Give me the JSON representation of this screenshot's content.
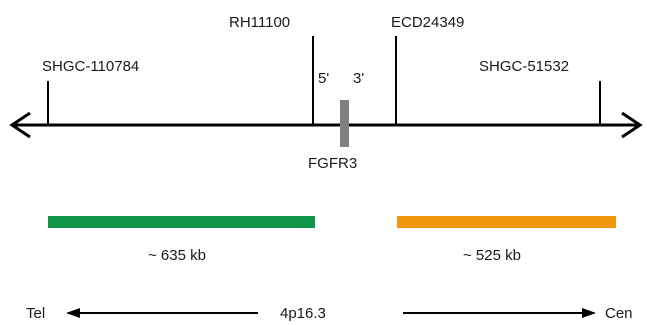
{
  "markers": {
    "m1": "SHGC-110784",
    "m2": "RH11100",
    "m3": "ECD24349",
    "m4": "SHGC-51532"
  },
  "gene": {
    "name": "FGFR3",
    "five_prime": "5'",
    "three_prime": "3'",
    "color": "#808080"
  },
  "probes": {
    "left": {
      "size_label": "~ 635 kb",
      "color": "#0f9447"
    },
    "right": {
      "size_label": "~ 525 kb",
      "color": "#f0960f"
    }
  },
  "orientation": {
    "left_label": "Tel",
    "center_label": "4p16.3",
    "right_label": "Cen"
  }
}
